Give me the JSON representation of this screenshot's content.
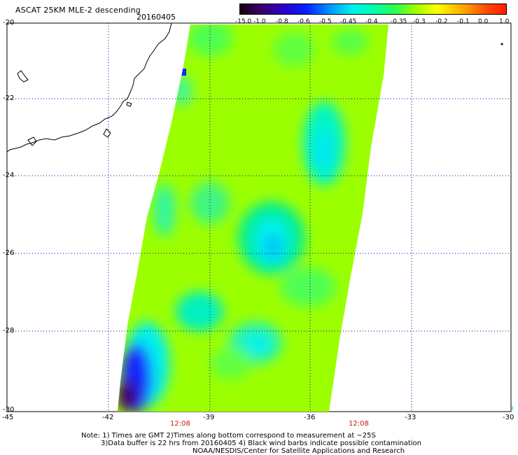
{
  "title": "ASCAT 25KM MLE-2 descending",
  "date": "20160405",
  "colorbar": {
    "labels": [
      "-15.0",
      "-1.0",
      "-0.8",
      "-0.6",
      "-0.5",
      "-0.45",
      "-0.4",
      "-0.35",
      "-0.3",
      "-0.2",
      "-0.1",
      "0.0",
      "1.0"
    ]
  },
  "axes": {
    "x_ticks": [
      "-45",
      "-42",
      "-39",
      "-36",
      "-33",
      "-30"
    ],
    "y_ticks": [
      "-20",
      "-22",
      "-24",
      "-26",
      "-28",
      "-30"
    ]
  },
  "times": {
    "left": "12:08",
    "right": "12:08"
  },
  "notes": {
    "line1": "Note: 1) Times are GMT 2)Times along bottom correspond to measurement at ~25S",
    "line2": "3)Data buffer is 22 hrs from 20160405 4) Black wind barbs indicate possible contamination",
    "line3": "NOAA/NESDIS/Center for Satellite Applications and Research"
  },
  "colors": {
    "swath_base": "#9cff00",
    "swath_green": "#40ff40",
    "swath_cyan": "#00f5f5",
    "swath_blue": "#1428ff",
    "swath_purple": "#3c0070",
    "grid": "#0000aa",
    "coast": "#000000"
  }
}
